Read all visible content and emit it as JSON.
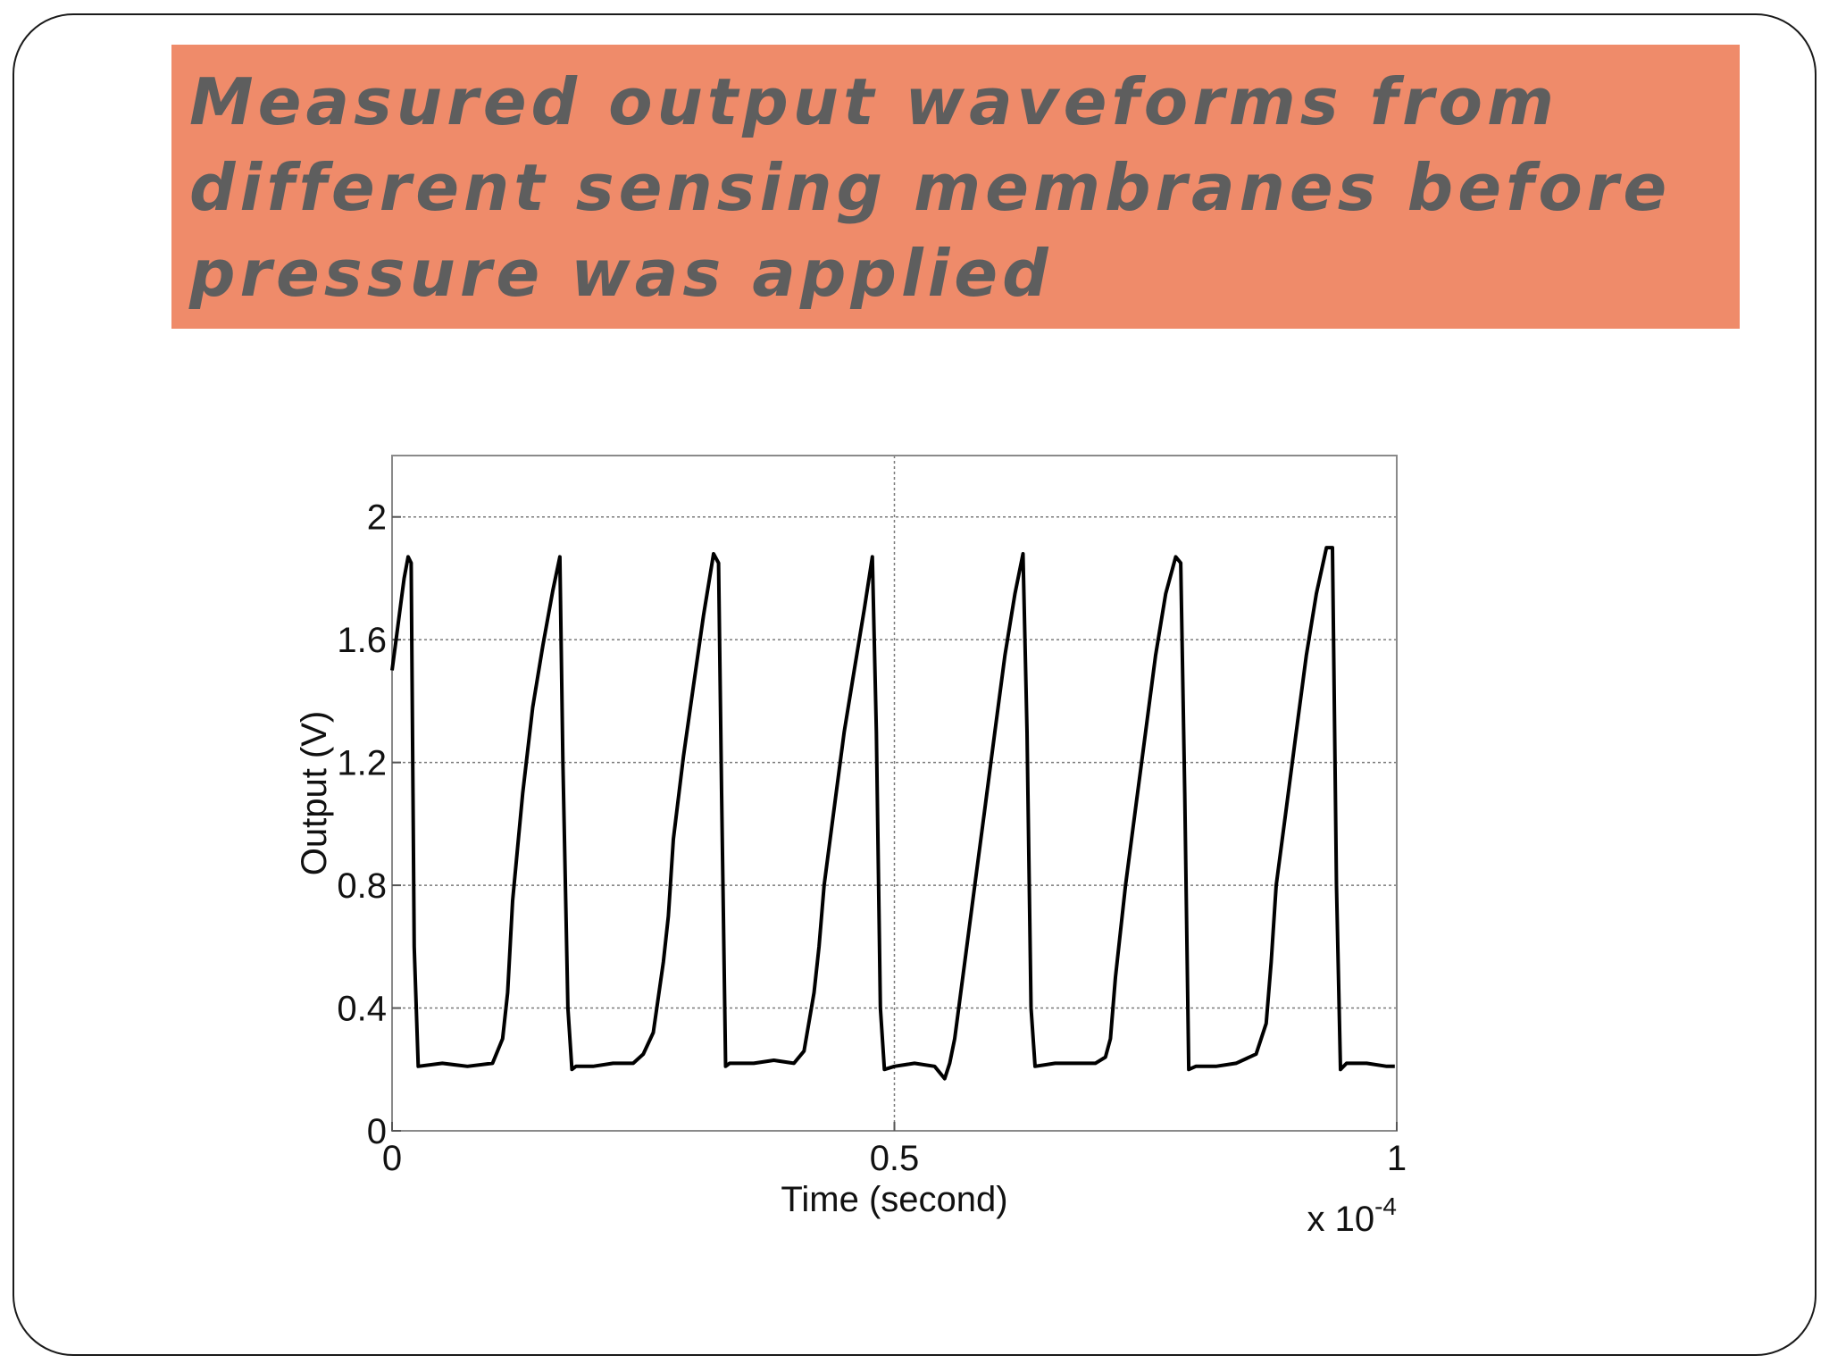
{
  "slide": {
    "title": "Measured output waveforms from different sensing membranes before pressure was applied",
    "colors": {
      "title_bg": "#ef8b6a",
      "title_text": "#5e5e5e",
      "border": "#1a1a1a"
    }
  },
  "chart_data": {
    "type": "line",
    "title": "",
    "xlabel": "Time (second)",
    "ylabel": "Output (V)",
    "x_multiplier": "x 10",
    "x_multiplier_exponent": "-4",
    "xlim": [
      0,
      1
    ],
    "ylim": [
      0,
      2.2
    ],
    "x_ticks": [
      0,
      0.5,
      1
    ],
    "x_tick_labels": [
      "0",
      "0.5",
      "1"
    ],
    "y_ticks": [
      0,
      0.4,
      0.8,
      1.2,
      1.6,
      2
    ],
    "y_tick_labels": [
      "0",
      "0.4",
      "0.8",
      "1.2",
      "1.6",
      "2"
    ],
    "grid": true,
    "legend": "none",
    "line_color": "#000000",
    "series": [
      {
        "x": [
          0,
          0.004,
          0.008,
          0.012,
          0.016,
          0.019,
          0.022,
          0.026,
          0.05,
          0.075,
          0.1,
          0.11,
          0.115,
          0.12,
          0.13,
          0.14,
          0.15,
          0.16,
          0.167,
          0.17,
          0.175,
          0.179,
          0.183,
          0.2,
          0.22,
          0.24,
          0.25,
          0.26,
          0.27,
          0.275,
          0.28,
          0.29,
          0.3,
          0.31,
          0.32,
          0.325,
          0.328,
          0.332,
          0.336,
          0.36,
          0.38,
          0.4,
          0.41,
          0.42,
          0.425,
          0.43,
          0.44,
          0.45,
          0.46,
          0.47,
          0.478,
          0.482,
          0.486,
          0.49,
          0.5,
          0.52,
          0.54,
          0.55,
          0.555,
          0.56,
          0.57,
          0.58,
          0.59,
          0.6,
          0.61,
          0.62,
          0.628,
          0.632,
          0.636,
          0.64,
          0.66,
          0.68,
          0.7,
          0.71,
          0.715,
          0.72,
          0.73,
          0.74,
          0.75,
          0.76,
          0.77,
          0.78,
          0.785,
          0.789,
          0.793,
          0.8,
          0.82,
          0.84,
          0.86,
          0.87,
          0.875,
          0.88,
          0.89,
          0.9,
          0.91,
          0.92,
          0.93,
          0.936,
          0.94,
          0.944,
          0.95,
          0.97,
          0.99,
          0.998
        ],
        "y": [
          1.5,
          1.6,
          1.7,
          1.8,
          1.87,
          1.85,
          0.6,
          0.21,
          0.22,
          0.21,
          0.22,
          0.3,
          0.45,
          0.75,
          1.1,
          1.38,
          1.58,
          1.76,
          1.87,
          1.2,
          0.4,
          0.2,
          0.21,
          0.21,
          0.22,
          0.22,
          0.25,
          0.32,
          0.55,
          0.7,
          0.95,
          1.22,
          1.45,
          1.68,
          1.88,
          1.85,
          1.1,
          0.21,
          0.22,
          0.22,
          0.23,
          0.22,
          0.26,
          0.45,
          0.6,
          0.8,
          1.05,
          1.3,
          1.5,
          1.7,
          1.87,
          1.3,
          0.4,
          0.2,
          0.21,
          0.22,
          0.21,
          0.17,
          0.22,
          0.3,
          0.55,
          0.8,
          1.05,
          1.3,
          1.55,
          1.75,
          1.88,
          1.3,
          0.4,
          0.21,
          0.22,
          0.22,
          0.22,
          0.24,
          0.3,
          0.5,
          0.8,
          1.05,
          1.3,
          1.55,
          1.75,
          1.87,
          1.85,
          1.1,
          0.2,
          0.21,
          0.21,
          0.22,
          0.25,
          0.35,
          0.55,
          0.8,
          1.05,
          1.3,
          1.55,
          1.75,
          1.9,
          1.9,
          0.8,
          0.2,
          0.22,
          0.22,
          0.21,
          0.21
        ]
      }
    ]
  }
}
